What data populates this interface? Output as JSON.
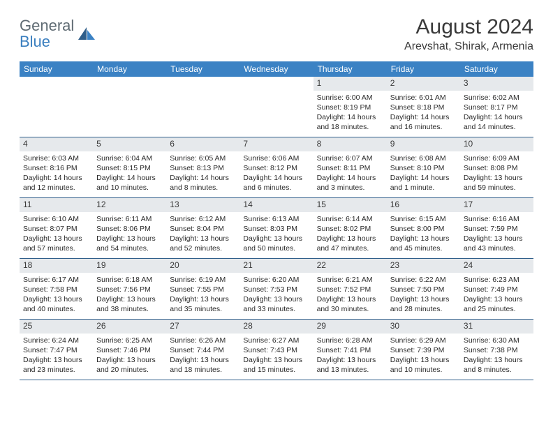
{
  "brand": {
    "general": "General",
    "blue": "Blue"
  },
  "title": "August 2024",
  "location": "Arevshat, Shirak, Armenia",
  "colors": {
    "header_bg": "#3b82c4",
    "header_fg": "#ffffff",
    "daynum_bg": "#e6e9ec",
    "cell_border": "#2f5e8a",
    "logo_gray": "#5f6b73",
    "logo_blue": "#3b7fbf",
    "text": "#2a2a2a"
  },
  "typography": {
    "title_fontsize": 30,
    "location_fontsize": 16,
    "weekday_fontsize": 12,
    "daynum_fontsize": 12,
    "body_fontsize": 10.5
  },
  "weekdays": [
    "Sunday",
    "Monday",
    "Tuesday",
    "Wednesday",
    "Thursday",
    "Friday",
    "Saturday"
  ],
  "weeks": [
    [
      {
        "n": "",
        "sr": "",
        "ss": "",
        "dl": ""
      },
      {
        "n": "",
        "sr": "",
        "ss": "",
        "dl": ""
      },
      {
        "n": "",
        "sr": "",
        "ss": "",
        "dl": ""
      },
      {
        "n": "",
        "sr": "",
        "ss": "",
        "dl": ""
      },
      {
        "n": "1",
        "sr": "Sunrise: 6:00 AM",
        "ss": "Sunset: 8:19 PM",
        "dl": "Daylight: 14 hours and 18 minutes."
      },
      {
        "n": "2",
        "sr": "Sunrise: 6:01 AM",
        "ss": "Sunset: 8:18 PM",
        "dl": "Daylight: 14 hours and 16 minutes."
      },
      {
        "n": "3",
        "sr": "Sunrise: 6:02 AM",
        "ss": "Sunset: 8:17 PM",
        "dl": "Daylight: 14 hours and 14 minutes."
      }
    ],
    [
      {
        "n": "4",
        "sr": "Sunrise: 6:03 AM",
        "ss": "Sunset: 8:16 PM",
        "dl": "Daylight: 14 hours and 12 minutes."
      },
      {
        "n": "5",
        "sr": "Sunrise: 6:04 AM",
        "ss": "Sunset: 8:15 PM",
        "dl": "Daylight: 14 hours and 10 minutes."
      },
      {
        "n": "6",
        "sr": "Sunrise: 6:05 AM",
        "ss": "Sunset: 8:13 PM",
        "dl": "Daylight: 14 hours and 8 minutes."
      },
      {
        "n": "7",
        "sr": "Sunrise: 6:06 AM",
        "ss": "Sunset: 8:12 PM",
        "dl": "Daylight: 14 hours and 6 minutes."
      },
      {
        "n": "8",
        "sr": "Sunrise: 6:07 AM",
        "ss": "Sunset: 8:11 PM",
        "dl": "Daylight: 14 hours and 3 minutes."
      },
      {
        "n": "9",
        "sr": "Sunrise: 6:08 AM",
        "ss": "Sunset: 8:10 PM",
        "dl": "Daylight: 14 hours and 1 minute."
      },
      {
        "n": "10",
        "sr": "Sunrise: 6:09 AM",
        "ss": "Sunset: 8:08 PM",
        "dl": "Daylight: 13 hours and 59 minutes."
      }
    ],
    [
      {
        "n": "11",
        "sr": "Sunrise: 6:10 AM",
        "ss": "Sunset: 8:07 PM",
        "dl": "Daylight: 13 hours and 57 minutes."
      },
      {
        "n": "12",
        "sr": "Sunrise: 6:11 AM",
        "ss": "Sunset: 8:06 PM",
        "dl": "Daylight: 13 hours and 54 minutes."
      },
      {
        "n": "13",
        "sr": "Sunrise: 6:12 AM",
        "ss": "Sunset: 8:04 PM",
        "dl": "Daylight: 13 hours and 52 minutes."
      },
      {
        "n": "14",
        "sr": "Sunrise: 6:13 AM",
        "ss": "Sunset: 8:03 PM",
        "dl": "Daylight: 13 hours and 50 minutes."
      },
      {
        "n": "15",
        "sr": "Sunrise: 6:14 AM",
        "ss": "Sunset: 8:02 PM",
        "dl": "Daylight: 13 hours and 47 minutes."
      },
      {
        "n": "16",
        "sr": "Sunrise: 6:15 AM",
        "ss": "Sunset: 8:00 PM",
        "dl": "Daylight: 13 hours and 45 minutes."
      },
      {
        "n": "17",
        "sr": "Sunrise: 6:16 AM",
        "ss": "Sunset: 7:59 PM",
        "dl": "Daylight: 13 hours and 43 minutes."
      }
    ],
    [
      {
        "n": "18",
        "sr": "Sunrise: 6:17 AM",
        "ss": "Sunset: 7:58 PM",
        "dl": "Daylight: 13 hours and 40 minutes."
      },
      {
        "n": "19",
        "sr": "Sunrise: 6:18 AM",
        "ss": "Sunset: 7:56 PM",
        "dl": "Daylight: 13 hours and 38 minutes."
      },
      {
        "n": "20",
        "sr": "Sunrise: 6:19 AM",
        "ss": "Sunset: 7:55 PM",
        "dl": "Daylight: 13 hours and 35 minutes."
      },
      {
        "n": "21",
        "sr": "Sunrise: 6:20 AM",
        "ss": "Sunset: 7:53 PM",
        "dl": "Daylight: 13 hours and 33 minutes."
      },
      {
        "n": "22",
        "sr": "Sunrise: 6:21 AM",
        "ss": "Sunset: 7:52 PM",
        "dl": "Daylight: 13 hours and 30 minutes."
      },
      {
        "n": "23",
        "sr": "Sunrise: 6:22 AM",
        "ss": "Sunset: 7:50 PM",
        "dl": "Daylight: 13 hours and 28 minutes."
      },
      {
        "n": "24",
        "sr": "Sunrise: 6:23 AM",
        "ss": "Sunset: 7:49 PM",
        "dl": "Daylight: 13 hours and 25 minutes."
      }
    ],
    [
      {
        "n": "25",
        "sr": "Sunrise: 6:24 AM",
        "ss": "Sunset: 7:47 PM",
        "dl": "Daylight: 13 hours and 23 minutes."
      },
      {
        "n": "26",
        "sr": "Sunrise: 6:25 AM",
        "ss": "Sunset: 7:46 PM",
        "dl": "Daylight: 13 hours and 20 minutes."
      },
      {
        "n": "27",
        "sr": "Sunrise: 6:26 AM",
        "ss": "Sunset: 7:44 PM",
        "dl": "Daylight: 13 hours and 18 minutes."
      },
      {
        "n": "28",
        "sr": "Sunrise: 6:27 AM",
        "ss": "Sunset: 7:43 PM",
        "dl": "Daylight: 13 hours and 15 minutes."
      },
      {
        "n": "29",
        "sr": "Sunrise: 6:28 AM",
        "ss": "Sunset: 7:41 PM",
        "dl": "Daylight: 13 hours and 13 minutes."
      },
      {
        "n": "30",
        "sr": "Sunrise: 6:29 AM",
        "ss": "Sunset: 7:39 PM",
        "dl": "Daylight: 13 hours and 10 minutes."
      },
      {
        "n": "31",
        "sr": "Sunrise: 6:30 AM",
        "ss": "Sunset: 7:38 PM",
        "dl": "Daylight: 13 hours and 8 minutes."
      }
    ]
  ]
}
